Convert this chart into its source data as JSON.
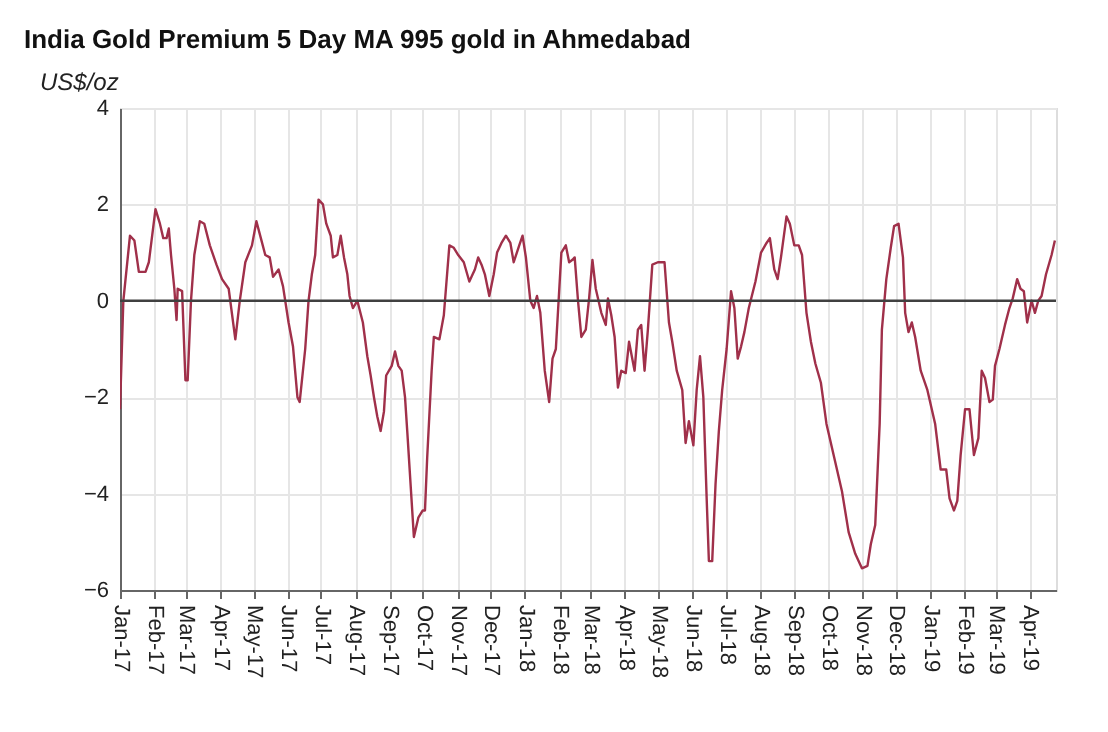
{
  "chart_data": {
    "type": "line",
    "title": "India Gold Premium 5 Day MA 995 gold in Ahmedabad",
    "ylabel": "US$/oz",
    "x": [
      "2017-01-01",
      "2017-01-04",
      "2017-01-10",
      "2017-01-14",
      "2017-01-18",
      "2017-01-24",
      "2017-01-27",
      "2017-02-02",
      "2017-02-06",
      "2017-02-09",
      "2017-02-12",
      "2017-02-14",
      "2017-02-16",
      "2017-02-19",
      "2017-02-21",
      "2017-02-22",
      "2017-02-26",
      "2017-03-01",
      "2017-03-03",
      "2017-03-06",
      "2017-03-09",
      "2017-03-14",
      "2017-03-18",
      "2017-03-23",
      "2017-03-29",
      "2017-04-03",
      "2017-04-09",
      "2017-04-15",
      "2017-04-19",
      "2017-04-24",
      "2017-04-30",
      "2017-05-04",
      "2017-05-08",
      "2017-05-12",
      "2017-05-16",
      "2017-05-19",
      "2017-05-24",
      "2017-05-28",
      "2017-06-02",
      "2017-06-06",
      "2017-06-10",
      "2017-06-12",
      "2017-06-17",
      "2017-06-20",
      "2017-06-23",
      "2017-06-26",
      "2017-06-29",
      "2017-07-03",
      "2017-07-06",
      "2017-07-10",
      "2017-07-12",
      "2017-07-16",
      "2017-07-19",
      "2017-07-22",
      "2017-07-25",
      "2017-07-27",
      "2017-07-30",
      "2017-08-03",
      "2017-08-08",
      "2017-08-12",
      "2017-08-15",
      "2017-08-18",
      "2017-08-21",
      "2017-08-24",
      "2017-08-27",
      "2017-08-29",
      "2017-09-03",
      "2017-09-06",
      "2017-09-09",
      "2017-09-12",
      "2017-09-15",
      "2017-09-17",
      "2017-09-20",
      "2017-09-23",
      "2017-09-27",
      "2017-10-01",
      "2017-10-03",
      "2017-10-05",
      "2017-10-09",
      "2017-10-11",
      "2017-10-16",
      "2017-10-20",
      "2017-10-25",
      "2017-10-29",
      "2017-11-02",
      "2017-11-07",
      "2017-11-12",
      "2017-11-15",
      "2017-11-17",
      "2017-11-20",
      "2017-11-23",
      "2017-11-26",
      "2017-11-30",
      "2017-12-04",
      "2017-12-07",
      "2017-12-11",
      "2017-12-15",
      "2017-12-19",
      "2017-12-22",
      "2017-12-27",
      "2017-12-30",
      "2018-01-02",
      "2018-01-06",
      "2018-01-09",
      "2018-01-12",
      "2018-01-15",
      "2018-01-19",
      "2018-01-23",
      "2018-01-26",
      "2018-01-29",
      "2018-02-03",
      "2018-02-07",
      "2018-02-10",
      "2018-02-13",
      "2018-02-15",
      "2018-02-18",
      "2018-02-21",
      "2018-02-25",
      "2018-02-28",
      "2018-03-03",
      "2018-03-06",
      "2018-03-11",
      "2018-03-15",
      "2018-03-17",
      "2018-03-20",
      "2018-03-23",
      "2018-03-26",
      "2018-03-29",
      "2018-04-02",
      "2018-04-05",
      "2018-04-10",
      "2018-04-13",
      "2018-04-16",
      "2018-04-19",
      "2018-04-22",
      "2018-04-26",
      "2018-05-01",
      "2018-05-07",
      "2018-05-11",
      "2018-05-14",
      "2018-05-18",
      "2018-05-23",
      "2018-05-26",
      "2018-05-29",
      "2018-06-02",
      "2018-06-05",
      "2018-06-08",
      "2018-06-11",
      "2018-06-14",
      "2018-06-16",
      "2018-06-19",
      "2018-06-22",
      "2018-06-25",
      "2018-06-28",
      "2018-07-02",
      "2018-07-06",
      "2018-07-09",
      "2018-07-12",
      "2018-07-15",
      "2018-07-18",
      "2018-07-22",
      "2018-07-28",
      "2018-08-02",
      "2018-08-07",
      "2018-08-10",
      "2018-08-14",
      "2018-08-17",
      "2018-08-20",
      "2018-08-25",
      "2018-08-28",
      "2018-09-01",
      "2018-09-05",
      "2018-09-08",
      "2018-09-12",
      "2018-09-16",
      "2018-09-20",
      "2018-09-25",
      "2018-09-30",
      "2018-10-07",
      "2018-10-14",
      "2018-10-20",
      "2018-10-26",
      "2018-11-01",
      "2018-11-06",
      "2018-11-09",
      "2018-11-13",
      "2018-11-17",
      "2018-11-19",
      "2018-11-23",
      "2018-11-27",
      "2018-11-30",
      "2018-12-04",
      "2018-12-08",
      "2018-12-10",
      "2018-12-13",
      "2018-12-16",
      "2018-12-19",
      "2018-12-24",
      "2018-12-30",
      "2019-01-06",
      "2019-01-11",
      "2019-01-16",
      "2019-01-19",
      "2019-01-23",
      "2019-01-26",
      "2019-01-29",
      "2019-02-02",
      "2019-02-06",
      "2019-02-10",
      "2019-02-14",
      "2019-02-17",
      "2019-02-20",
      "2019-02-24",
      "2019-02-27",
      "2019-03-01",
      "2019-03-05",
      "2019-03-10",
      "2019-03-14",
      "2019-03-17",
      "2019-03-21",
      "2019-03-24",
      "2019-03-27",
      "2019-03-30",
      "2019-04-03",
      "2019-04-06",
      "2019-04-09",
      "2019-04-12",
      "2019-04-16",
      "2019-04-21",
      "2019-04-24"
    ],
    "series": [
      {
        "color": "#a0304a",
        "values": [
          -2.25,
          0,
          1.35,
          1.25,
          0.6,
          0.6,
          0.8,
          1.9,
          1.6,
          1.3,
          1.3,
          1.5,
          0.95,
          0.25,
          -0.4,
          0.25,
          0.2,
          -1.65,
          -1.65,
          0,
          0.95,
          1.65,
          1.6,
          1.15,
          0.75,
          0.45,
          0.25,
          -0.8,
          0,
          0.8,
          1.15,
          1.65,
          1.3,
          0.95,
          0.9,
          0.5,
          0.65,
          0.3,
          -0.45,
          -0.95,
          -2.0,
          -2.1,
          -1.0,
          0,
          0.55,
          0.95,
          2.1,
          2.0,
          1.6,
          1.35,
          0.9,
          0.95,
          1.35,
          0.9,
          0.55,
          0.1,
          -0.15,
          0,
          -0.45,
          -1.15,
          -1.55,
          -2.0,
          -2.4,
          -2.7,
          -2.3,
          -1.55,
          -1.35,
          -1.05,
          -1.35,
          -1.45,
          -2.0,
          -2.7,
          -3.8,
          -4.9,
          -4.5,
          -4.35,
          -4.35,
          -3.25,
          -1.45,
          -0.75,
          -0.8,
          -0.3,
          1.15,
          1.1,
          0.95,
          0.8,
          0.4,
          0.55,
          0.65,
          0.9,
          0.75,
          0.55,
          0.1,
          0.55,
          1.0,
          1.2,
          1.35,
          1.2,
          0.8,
          1.15,
          1.35,
          0.9,
          0,
          -0.15,
          0.1,
          -0.25,
          -1.45,
          -2.1,
          -1.2,
          -1.0,
          1.0,
          1.15,
          0.8,
          0.85,
          0.9,
          0,
          -0.75,
          -0.6,
          0.05,
          0.85,
          0.25,
          -0.25,
          -0.5,
          0.05,
          -0.3,
          -0.75,
          -1.8,
          -1.45,
          -1.5,
          -0.85,
          -1.45,
          -0.6,
          -0.5,
          -1.45,
          -0.6,
          0.75,
          0.8,
          0.8,
          -0.45,
          -0.85,
          -1.45,
          -1.85,
          -2.95,
          -2.5,
          -3.0,
          -1.85,
          -1.15,
          -2.0,
          -4.1,
          -5.4,
          -5.4,
          -3.8,
          -2.7,
          -1.85,
          -1.0,
          0.2,
          -0.15,
          -1.2,
          -0.95,
          -0.65,
          -0.15,
          0.4,
          1.0,
          1.2,
          1.3,
          0.65,
          0.45,
          0.9,
          1.75,
          1.6,
          1.15,
          1.15,
          0.95,
          -0.25,
          -0.85,
          -1.3,
          -1.7,
          -2.55,
          -3.25,
          -3.95,
          -4.8,
          -5.25,
          -5.55,
          -5.5,
          -5.05,
          -4.65,
          -2.55,
          -0.6,
          0.45,
          1.1,
          1.55,
          1.6,
          0.9,
          -0.25,
          -0.65,
          -0.45,
          -0.75,
          -1.45,
          -1.85,
          -2.55,
          -3.5,
          -3.5,
          -4.1,
          -4.35,
          -4.15,
          -3.2,
          -2.25,
          -2.25,
          -3.2,
          -2.85,
          -1.45,
          -1.6,
          -2.1,
          -2.05,
          -1.35,
          -1.0,
          -0.5,
          -0.15,
          0.05,
          0.45,
          0.25,
          0.2,
          -0.45,
          0,
          -0.25,
          0,
          0.1,
          0.55,
          0.95,
          1.25
        ]
      }
    ],
    "xlim": [
      "2017-01-01",
      "2019-04-25"
    ],
    "xticks": [
      {
        "value": "2017-01-01",
        "label": "Jan-17"
      },
      {
        "value": "2017-02-01",
        "label": "Feb-17"
      },
      {
        "value": "2017-03-01",
        "label": "Mar-17"
      },
      {
        "value": "2017-04-01",
        "label": "Apr-17"
      },
      {
        "value": "2017-05-01",
        "label": "May-17"
      },
      {
        "value": "2017-06-01",
        "label": "Jun-17"
      },
      {
        "value": "2017-07-01",
        "label": "Jul-17"
      },
      {
        "value": "2017-08-01",
        "label": "Aug-17"
      },
      {
        "value": "2017-09-01",
        "label": "Sep-17"
      },
      {
        "value": "2017-10-01",
        "label": "Oct-17"
      },
      {
        "value": "2017-11-01",
        "label": "Nov-17"
      },
      {
        "value": "2017-12-01",
        "label": "Dec-17"
      },
      {
        "value": "2018-01-01",
        "label": "Jan-18"
      },
      {
        "value": "2018-02-01",
        "label": "Feb-18"
      },
      {
        "value": "2018-03-01",
        "label": "Mar-18"
      },
      {
        "value": "2018-04-01",
        "label": "Apr-18"
      },
      {
        "value": "2018-05-01",
        "label": "May-18"
      },
      {
        "value": "2018-06-01",
        "label": "Jun-18"
      },
      {
        "value": "2018-07-01",
        "label": "Jul-18"
      },
      {
        "value": "2018-08-01",
        "label": "Aug-18"
      },
      {
        "value": "2018-09-01",
        "label": "Sep-18"
      },
      {
        "value": "2018-10-01",
        "label": "Oct-18"
      },
      {
        "value": "2018-11-01",
        "label": "Nov-18"
      },
      {
        "value": "2018-12-01",
        "label": "Dec-18"
      },
      {
        "value": "2019-01-01",
        "label": "Jan-19"
      },
      {
        "value": "2019-02-01",
        "label": "Feb-19"
      },
      {
        "value": "2019-03-01",
        "label": "Mar-19"
      },
      {
        "value": "2019-04-01",
        "label": "Apr-19"
      }
    ],
    "ylim": [
      -6,
      4
    ],
    "yticks": [
      -6,
      -4,
      -2,
      0,
      2,
      4
    ],
    "ref_lines": [
      {
        "axis": "y",
        "value": 0,
        "color": "#404040"
      }
    ],
    "grid": true,
    "marker": "none",
    "line_style": "solid"
  }
}
